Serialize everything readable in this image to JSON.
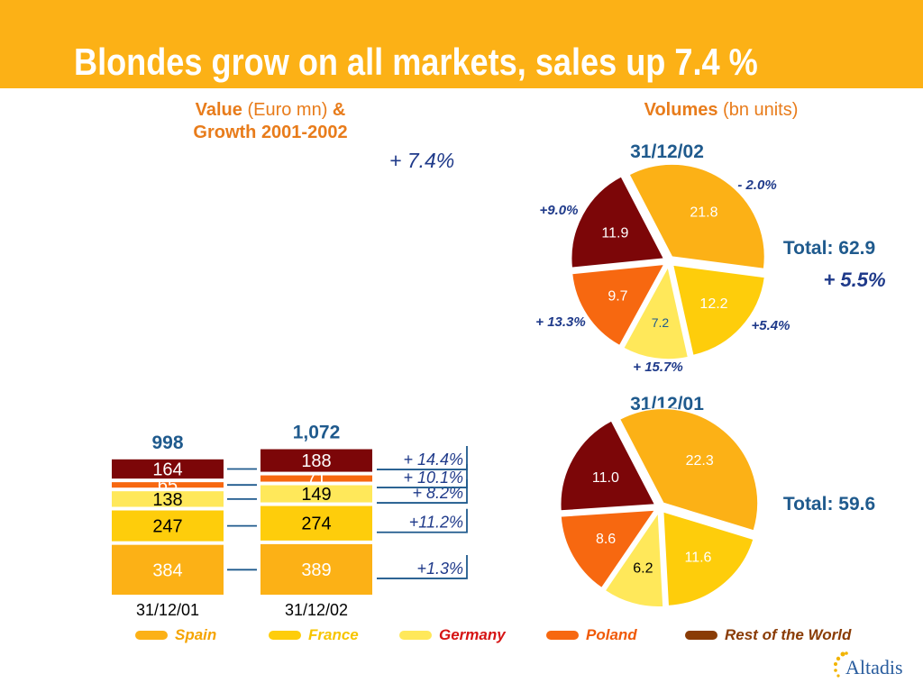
{
  "slide": {
    "title": "Blondes grow on all markets, sales up 7.4 %",
    "logo_text": "Altadis"
  },
  "value_panel": {
    "heading_bold": "Value",
    "heading_unit": "(Euro mn)",
    "heading_amp": "&",
    "heading_line2": "Growth 2001-2002",
    "overall_growth": "+ 7.4%"
  },
  "volume_panel": {
    "heading_bold": "Volumes",
    "heading_unit": "(bn units)"
  },
  "colors": {
    "header": "#fcb116",
    "spain": "#fcb116",
    "france": "#fecd0b",
    "germany": "#ffe85a",
    "poland": "#f76810",
    "rest": "#7c0608",
    "title_blue": "#1f5a8d"
  },
  "legend": [
    {
      "label": "Spain",
      "color": "#fcb116",
      "text_color": "#f5a400"
    },
    {
      "label": "France",
      "color": "#fecd0b",
      "text_color": "#f7c500"
    },
    {
      "label": "Germany",
      "color": "#ffe85a",
      "text_color": "#d61414"
    },
    {
      "label": "Poland",
      "color": "#f76810",
      "text_color": "#f05a08"
    },
    {
      "label": "Rest of the World",
      "color": "#8a3c06",
      "text_color": "#8a3c06"
    }
  ],
  "chart_data": [
    {
      "type": "bar",
      "stacked": true,
      "categories": [
        "31/12/01",
        "31/12/02"
      ],
      "totals": [
        "998",
        "1,072"
      ],
      "series": [
        {
          "name": "Spain",
          "values": [
            384,
            389
          ],
          "growth": "+1.3%"
        },
        {
          "name": "France",
          "values": [
            247,
            274
          ],
          "growth": "+11.2%"
        },
        {
          "name": "Germany",
          "values": [
            138,
            149
          ],
          "growth": "+ 8.2%"
        },
        {
          "name": "Poland",
          "values": [
            65,
            71
          ],
          "growth": "+ 10.1%"
        },
        {
          "name": "Rest of the World",
          "values": [
            164,
            188
          ],
          "growth": "+ 14.4%"
        }
      ]
    },
    {
      "type": "pie",
      "title": "31/12/02",
      "total_label": "Total: 62.9",
      "total_growth": "+ 5.5%",
      "slices": [
        {
          "name": "Spain",
          "value": 21.8,
          "label": "21.8",
          "growth": "- 2.0%"
        },
        {
          "name": "France",
          "value": 12.2,
          "label": "12.2",
          "growth": "+5.4%"
        },
        {
          "name": "Germany",
          "value": 7.2,
          "label": "7.2",
          "growth": "+ 15.7%"
        },
        {
          "name": "Poland",
          "value": 9.7,
          "label": "9.7",
          "growth": "+ 13.3%"
        },
        {
          "name": "Rest of the World",
          "value": 11.9,
          "label": "11.9",
          "growth": "+9.0%"
        }
      ]
    },
    {
      "type": "pie",
      "title": "31/12/01",
      "total_label": "Total: 59.6",
      "slices": [
        {
          "name": "Spain",
          "value": 22.3,
          "label": "22.3"
        },
        {
          "name": "France",
          "value": 11.6,
          "label": "11.6"
        },
        {
          "name": "Germany",
          "value": 6.2,
          "label": "6.2"
        },
        {
          "name": "Poland",
          "value": 8.6,
          "label": "8.6"
        },
        {
          "name": "Rest of the World",
          "value": 11.0,
          "label": "11.0"
        }
      ]
    }
  ]
}
